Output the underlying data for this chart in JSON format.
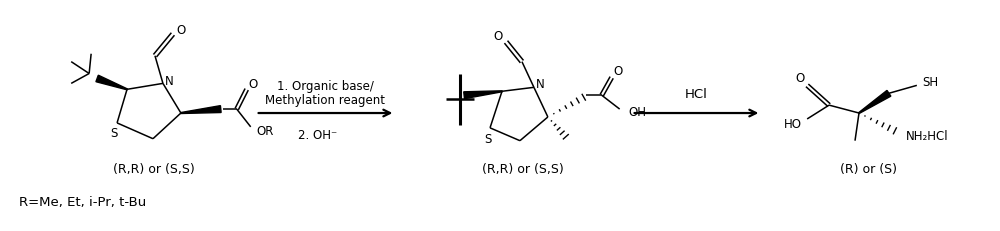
{
  "background_color": "#ffffff",
  "figsize": [
    10.0,
    2.32
  ],
  "dpi": 100,
  "mol1_label": "(R,R) or (S,S)",
  "mol2_label": "(R,R) or (S,S)",
  "mol3_label": "(R) or (S)",
  "bottom_note": "R=Me, Et, i-Pr, t-Bu",
  "arrow1_line1": "1. Organic base/",
  "arrow1_line2": "Methylation reagent",
  "arrow1_line3": "2. OH⁻",
  "arrow2_label": "HCl",
  "fs": 8.5,
  "lw": 1.1
}
